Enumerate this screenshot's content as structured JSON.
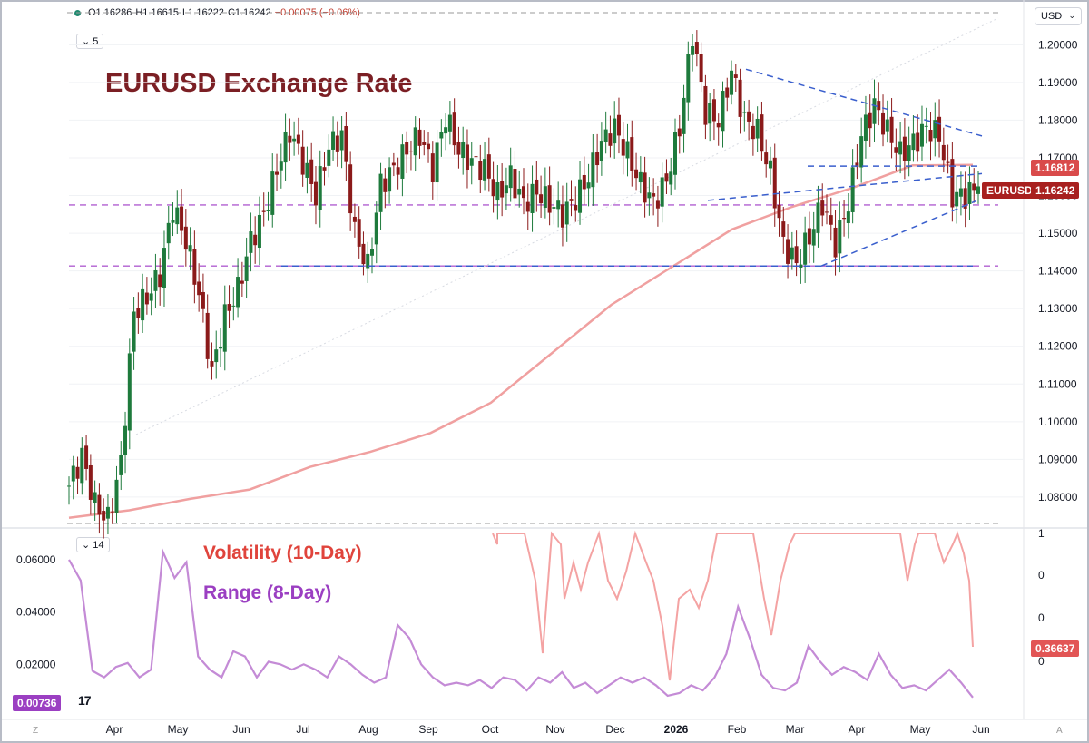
{
  "ohlc_bar": {
    "open": "O1.16286",
    "high": "H1.16615",
    "low": "L1.16222",
    "close": "C1.16242",
    "change": "−0.00075 (−0.06%)"
  },
  "interval_pill": "5",
  "lower_pill": "14",
  "currency_button": "USD",
  "overlay": {
    "title": "EURUSD Exchange Rate",
    "vol_label": "Volatility (10-Day)",
    "range_label": "Range (8-Day)"
  },
  "tags": {
    "ma_value": "1.16812",
    "symbol": "EURUSD",
    "price_value": "1.16242",
    "vol_value": "0.36637",
    "range_value": "0.00736"
  },
  "footer": {
    "left": "Z",
    "right": "A"
  },
  "colors": {
    "up": "#1e7a3c",
    "down": "#8b1a1a",
    "ma": "#f0a0a0",
    "trend": "#3a5fcd",
    "level": "#b05fd0",
    "vol": "#f4a3a3",
    "range": "#c48bd6",
    "title": "#7b1f24"
  },
  "chart_data": [
    {
      "type": "candlestick",
      "title": "EURUSD Exchange Rate",
      "x_ticks": [
        "Apr",
        "May",
        "Jun",
        "Jul",
        "Aug",
        "Sep",
        "Oct",
        "Nov",
        "Dec",
        "2026",
        "Feb",
        "Mar",
        "Apr",
        "May",
        "Jun"
      ],
      "y_ticks": [
        "1.08000",
        "1.09000",
        "1.10000",
        "1.11000",
        "1.12000",
        "1.13000",
        "1.14000",
        "1.15000",
        "1.16000",
        "1.17000",
        "1.18000",
        "1.19000",
        "1.20000"
      ],
      "ylim": [
        1.073,
        1.2085
      ],
      "close_series": [
        1.083,
        1.091,
        1.078,
        1.074,
        1.089,
        1.129,
        1.133,
        1.139,
        1.157,
        1.148,
        1.134,
        1.113,
        1.128,
        1.135,
        1.148,
        1.155,
        1.167,
        1.177,
        1.169,
        1.16,
        1.173,
        1.176,
        1.15,
        1.141,
        1.163,
        1.167,
        1.172,
        1.176,
        1.167,
        1.181,
        1.172,
        1.169,
        1.167,
        1.16,
        1.165,
        1.158,
        1.161,
        1.158,
        1.155,
        1.159,
        1.165,
        1.174,
        1.178,
        1.171,
        1.163,
        1.158,
        1.164,
        1.178,
        1.203,
        1.182,
        1.18,
        1.193,
        1.18,
        1.177,
        1.166,
        1.147,
        1.142,
        1.149,
        1.158,
        1.147,
        1.158,
        1.176,
        1.184,
        1.177,
        1.171,
        1.174,
        1.178,
        1.176,
        1.16,
        1.16,
        1.16242
      ],
      "moving_average": [
        1.0745,
        1.0765,
        1.0795,
        1.082,
        1.088,
        1.092,
        1.097,
        1.105,
        1.118,
        1.131,
        1.141,
        1.151,
        1.157,
        1.162,
        1.168,
        1.16812
      ],
      "horizontal_levels": [
        1.1575,
        1.1413
      ],
      "series": [
        {
          "name": "EURUSD",
          "last": 1.16242
        }
      ]
    },
    {
      "type": "line",
      "y_ticks": [
        "0.02000",
        "0.04000",
        "0.06000"
      ],
      "right_ticks": [
        "0",
        "0",
        "0",
        "1"
      ],
      "ylim": [
        0,
        0.07
      ],
      "series": [
        {
          "name": "Range (8-Day)",
          "values": [
            0.06,
            0.052,
            0.0175,
            0.015,
            0.019,
            0.0205,
            0.015,
            0.018,
            0.063,
            0.053,
            0.059,
            0.023,
            0.018,
            0.015,
            0.025,
            0.023,
            0.015,
            0.021,
            0.02,
            0.018,
            0.02,
            0.018,
            0.015,
            0.023,
            0.02,
            0.016,
            0.013,
            0.015,
            0.035,
            0.03,
            0.02,
            0.015,
            0.012,
            0.013,
            0.012,
            0.014,
            0.011,
            0.015,
            0.014,
            0.01,
            0.015,
            0.013,
            0.017,
            0.011,
            0.013,
            0.009,
            0.012,
            0.015,
            0.013,
            0.015,
            0.012,
            0.008,
            0.009,
            0.012,
            0.01,
            0.015,
            0.024,
            0.042,
            0.03,
            0.016,
            0.011,
            0.01,
            0.013,
            0.027,
            0.021,
            0.016,
            0.019,
            0.017,
            0.014,
            0.024,
            0.016,
            0.011,
            0.012,
            0.01,
            0.014,
            0.018,
            0.013,
            0.00736
          ]
        },
        {
          "name": "Volatility (10-Day)",
          "last": 0.36637
        }
      ]
    }
  ]
}
